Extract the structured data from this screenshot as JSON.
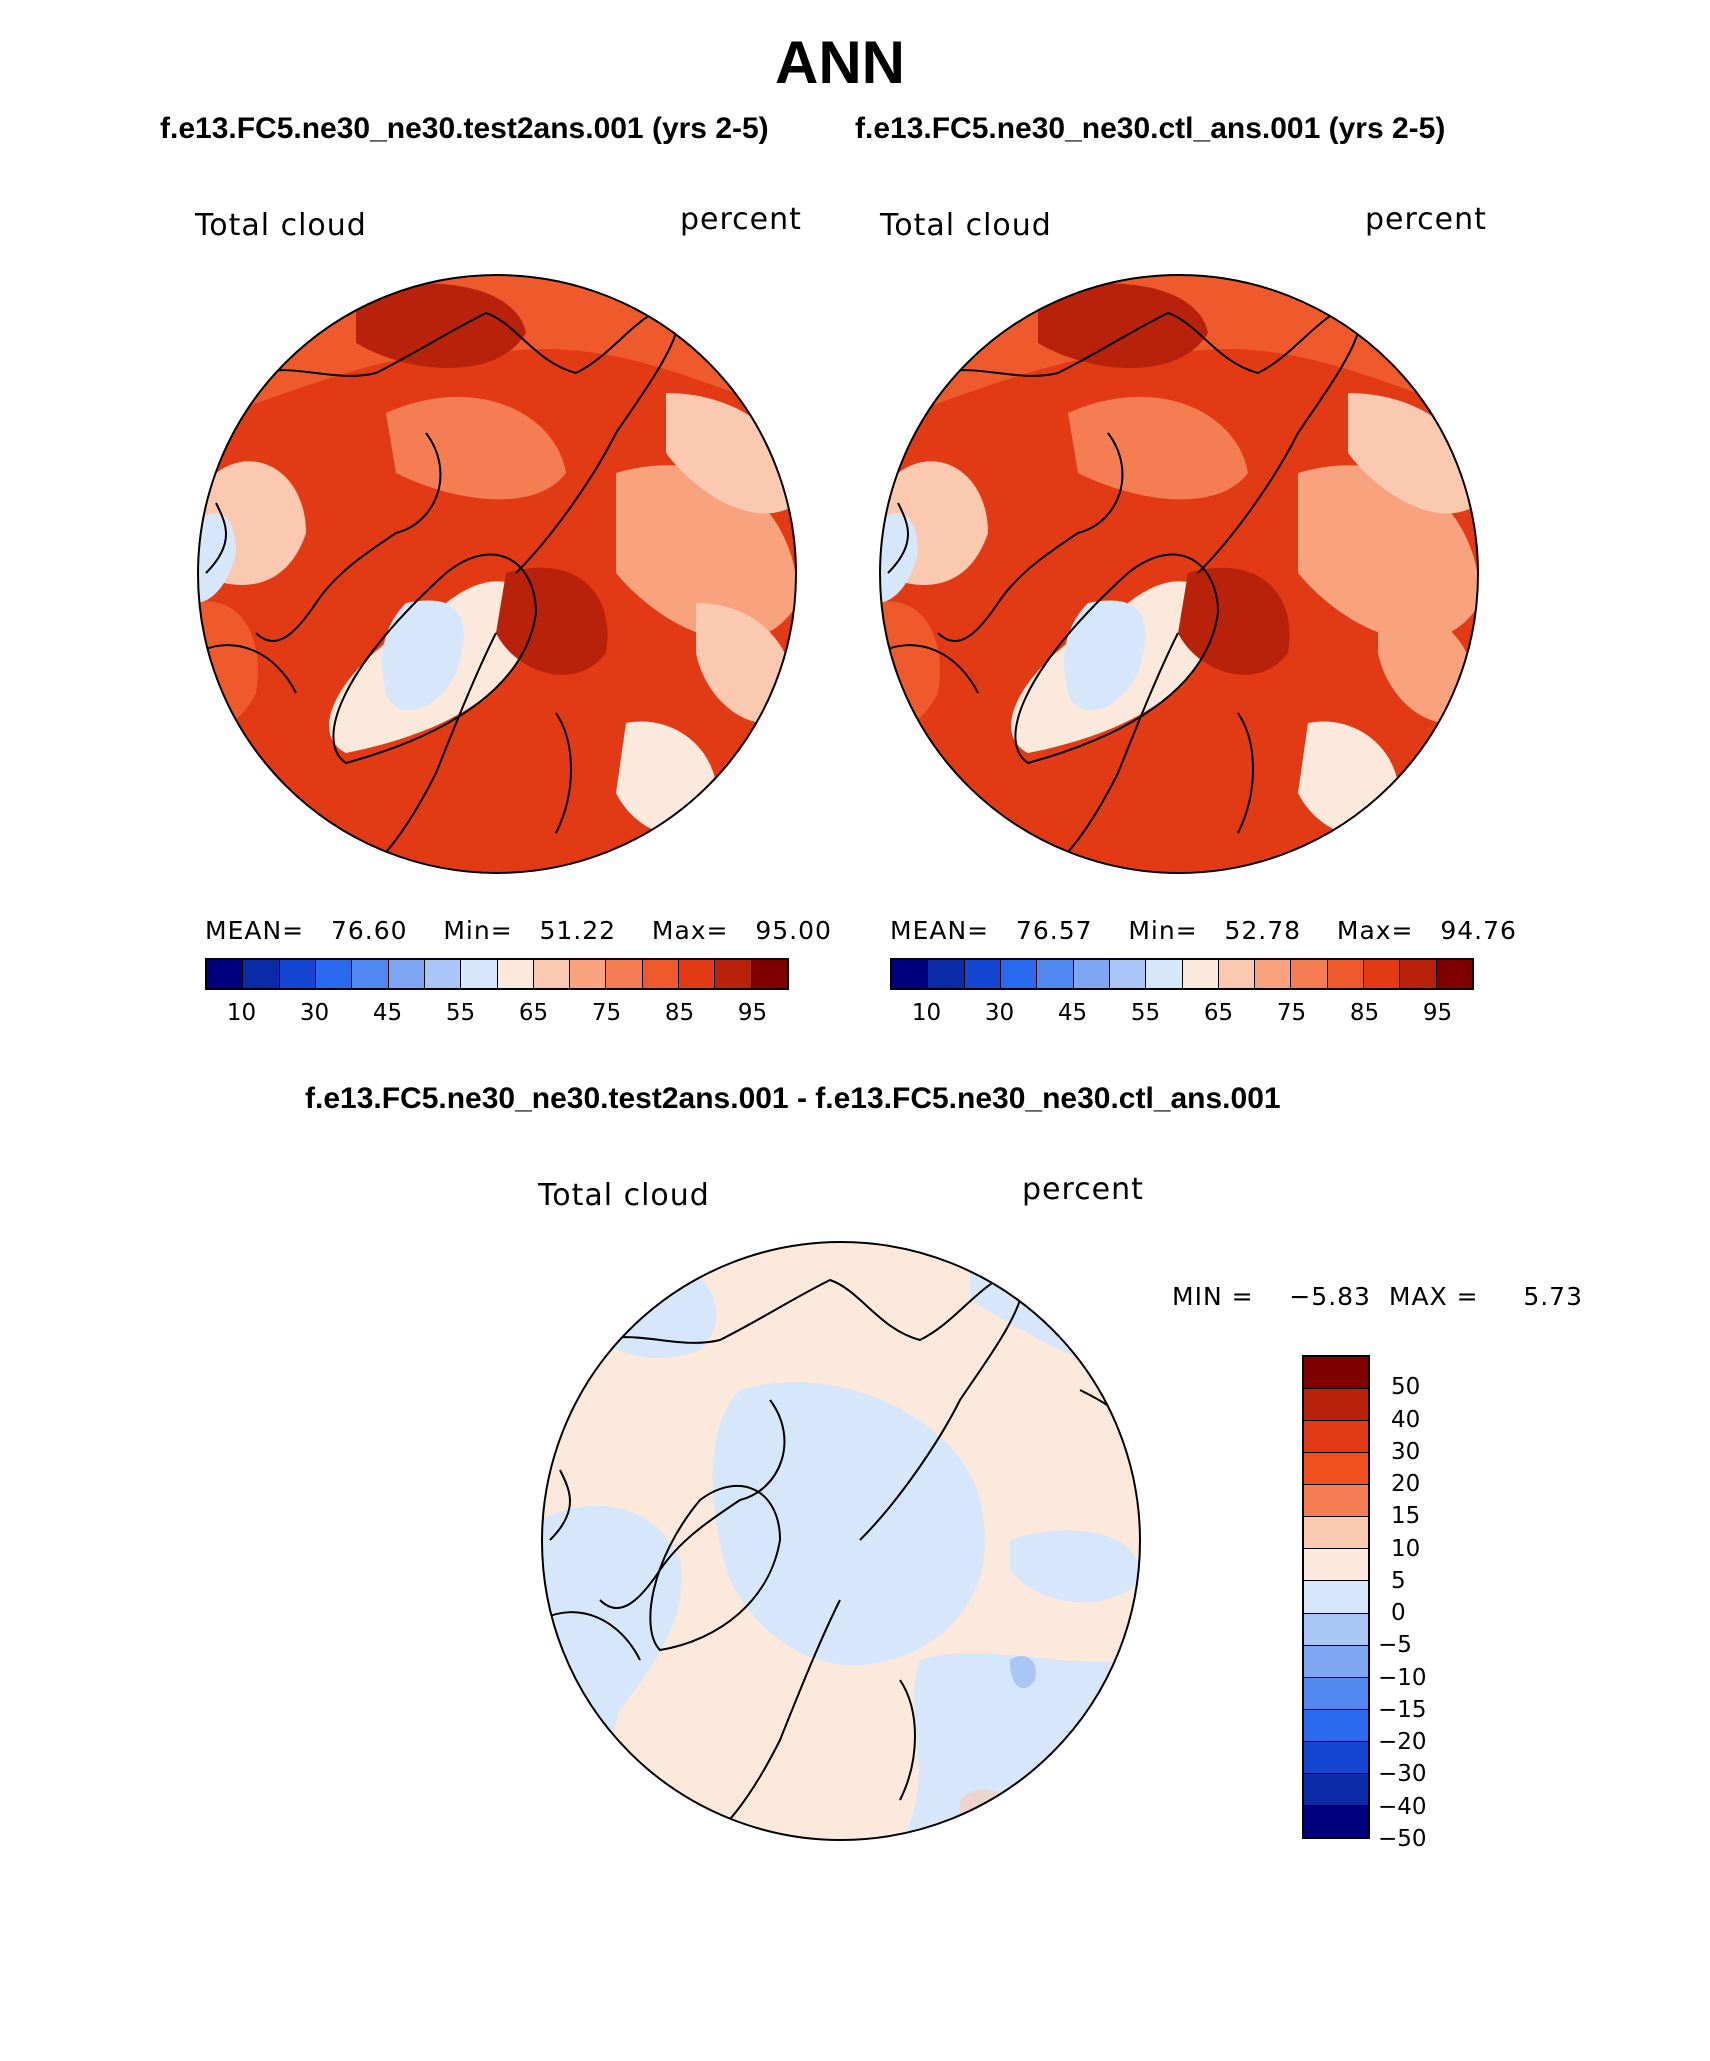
{
  "figure": {
    "title": "ANN",
    "subtitle_left": "f.e13.FC5.ne30_ne30.test2ans.001 (yrs 2-5)",
    "subtitle_right": "f.e13.FC5.ne30_ne30.ctl_ans.001 (yrs 2-5)",
    "diff_title": "f.e13.FC5.ne30_ne30.test2ans.001 - f.e13.FC5.ne30_ne30.ctl_ans.001"
  },
  "panels": [
    {
      "variable": "Total cloud",
      "units": "percent",
      "mean_label": "MEAN=",
      "mean": "76.60",
      "min_label": "Min=",
      "min": "51.22",
      "max_label": "Max=",
      "max": "95.00"
    },
    {
      "variable": "Total cloud",
      "units": "percent",
      "mean_label": "MEAN=",
      "mean": "76.57",
      "min_label": "Min=",
      "min": "52.78",
      "max_label": "Max=",
      "max": "94.76"
    }
  ],
  "abs_colorbar": {
    "colors": [
      "#00007f",
      "#0a2aa8",
      "#1446d2",
      "#2a6aee",
      "#5088f0",
      "#7ea6f2",
      "#aac6f6",
      "#d6e6fb",
      "#fde8dc",
      "#fbc8b0",
      "#f8a27e",
      "#f47d52",
      "#ee5a2c",
      "#e23a14",
      "#b8220a",
      "#800000"
    ],
    "tick_labels": [
      "10",
      "30",
      "45",
      "55",
      "65",
      "75",
      "85",
      "95"
    ]
  },
  "diff_panel": {
    "variable": "Total cloud",
    "units": "percent",
    "min_label": "MIN =",
    "min": "−5.83",
    "max_label": "MAX =",
    "max": "5.73"
  },
  "diff_colorbar": {
    "colors": [
      "#800000",
      "#b8220a",
      "#e23a14",
      "#f0501e",
      "#f47d52",
      "#fbc8b0",
      "#fde8dc",
      "#d6e6fb",
      "#aac6f6",
      "#7ea6f2",
      "#5088f0",
      "#2a6aee",
      "#1446d2",
      "#0a2aa8",
      "#00007f"
    ],
    "tick_labels": [
      "50",
      "40",
      "30",
      "20",
      "15",
      "10",
      "5",
      "0",
      "−5",
      "−10",
      "−15",
      "−20",
      "−30",
      "−40",
      "−50"
    ]
  }
}
